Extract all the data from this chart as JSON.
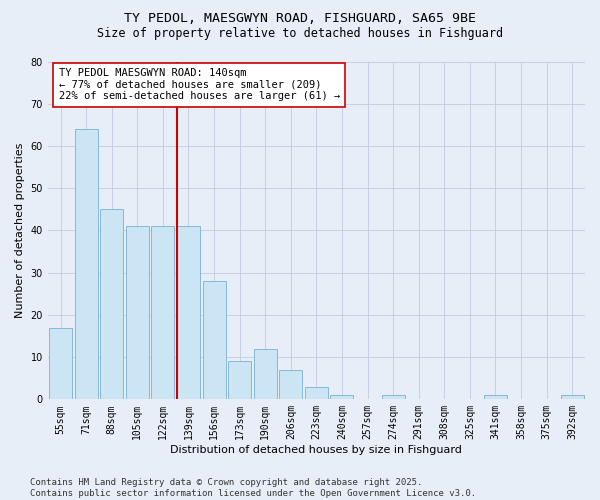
{
  "title_line1": "TY PEDOL, MAESGWYN ROAD, FISHGUARD, SA65 9BE",
  "title_line2": "Size of property relative to detached houses in Fishguard",
  "xlabel": "Distribution of detached houses by size in Fishguard",
  "ylabel": "Number of detached properties",
  "categories": [
    "55sqm",
    "71sqm",
    "88sqm",
    "105sqm",
    "122sqm",
    "139sqm",
    "156sqm",
    "173sqm",
    "190sqm",
    "206sqm",
    "223sqm",
    "240sqm",
    "257sqm",
    "274sqm",
    "291sqm",
    "308sqm",
    "325sqm",
    "341sqm",
    "358sqm",
    "375sqm",
    "392sqm"
  ],
  "values": [
    17,
    64,
    45,
    41,
    41,
    41,
    28,
    9,
    12,
    7,
    3,
    1,
    0,
    1,
    0,
    0,
    0,
    1,
    0,
    0,
    1
  ],
  "bar_color": "#cce5f5",
  "bar_edge_color": "#7ab0d4",
  "vline_color": "#cc0000",
  "annotation_text": "TY PEDOL MAESGWYN ROAD: 140sqm\n← 77% of detached houses are smaller (209)\n22% of semi-detached houses are larger (61) →",
  "annotation_box_color": "#ffffff",
  "annotation_box_edge": "#cc0000",
  "ylim": [
    0,
    80
  ],
  "yticks": [
    0,
    10,
    20,
    30,
    40,
    50,
    60,
    70,
    80
  ],
  "bg_color": "#e8eef8",
  "plot_bg_color": "#e8eef8",
  "grid_color": "#c0cce0",
  "footer_text": "Contains HM Land Registry data © Crown copyright and database right 2025.\nContains public sector information licensed under the Open Government Licence v3.0.",
  "title_fontsize": 9.5,
  "subtitle_fontsize": 8.5,
  "axis_label_fontsize": 8,
  "tick_fontsize": 7,
  "annotation_fontsize": 7.5,
  "footer_fontsize": 6.5
}
